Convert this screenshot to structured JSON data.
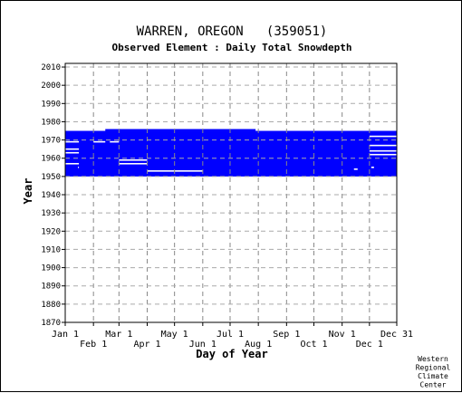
{
  "chart_data": {
    "type": "heatmap",
    "title": "WARREN, OREGON   (359051)",
    "subtitle": "Observed Element : Daily Total Snowdepth",
    "xlabel": "Day of Year",
    "ylabel": "Year",
    "xlim": [
      1,
      365
    ],
    "ylim": [
      1870,
      2012
    ],
    "x_ticks_top_row": [
      {
        "label": "Jan 1",
        "day": 1
      },
      {
        "label": "Mar 1",
        "day": 60
      },
      {
        "label": "May 1",
        "day": 121
      },
      {
        "label": "Jul 1",
        "day": 182
      },
      {
        "label": "Sep 1",
        "day": 244
      },
      {
        "label": "Nov 1",
        "day": 305
      },
      {
        "label": "Dec 31",
        "day": 365
      }
    ],
    "x_ticks_bottom_row": [
      {
        "label": "Feb 1",
        "day": 32
      },
      {
        "label": "Apr 1",
        "day": 91
      },
      {
        "label": "Jun 1",
        "day": 152
      },
      {
        "label": "Aug 1",
        "day": 213
      },
      {
        "label": "Oct 1",
        "day": 274
      },
      {
        "label": "Dec 1",
        "day": 335
      }
    ],
    "y_ticks": [
      2010,
      2000,
      1990,
      1980,
      1970,
      1960,
      1950,
      1940,
      1930,
      1920,
      1910,
      1900,
      1890,
      1880,
      1870
    ],
    "grid": true,
    "data_color": "#0000ff",
    "record_periods": [
      {
        "start_day": 1,
        "end_day": 365,
        "start_year": 1950,
        "end_year": 1975
      },
      {
        "start_day": 45,
        "end_day": 210,
        "start_year": 1975,
        "end_year": 1976
      }
    ],
    "missing_gaps": [
      {
        "start_day": 1,
        "end_day": 16,
        "year": 1969
      },
      {
        "start_day": 1,
        "end_day": 16,
        "year": 1965
      },
      {
        "start_day": 1,
        "end_day": 16,
        "year": 1963
      },
      {
        "start_day": 1,
        "end_day": 16,
        "year": 1957
      },
      {
        "start_day": 32,
        "end_day": 45,
        "year": 1969
      },
      {
        "start_day": 15,
        "end_day": 16,
        "year": 1955
      },
      {
        "start_day": 50,
        "end_day": 60,
        "year": 1969
      },
      {
        "start_day": 60,
        "end_day": 91,
        "year": 1959
      },
      {
        "start_day": 60,
        "end_day": 91,
        "year": 1957
      },
      {
        "start_day": 91,
        "end_day": 152,
        "year": 1953
      },
      {
        "start_day": 335,
        "end_day": 365,
        "year": 1972
      },
      {
        "start_day": 335,
        "end_day": 365,
        "year": 1967
      },
      {
        "start_day": 335,
        "end_day": 365,
        "year": 1964
      },
      {
        "start_day": 335,
        "end_day": 365,
        "year": 1962
      },
      {
        "start_day": 337,
        "end_day": 340,
        "year": 1955
      },
      {
        "start_day": 318,
        "end_day": 322,
        "year": 1954
      },
      {
        "start_day": 216,
        "end_day": 365,
        "year": 1949
      }
    ],
    "credit": [
      "Western",
      "Regional",
      "Climate",
      "Center"
    ]
  }
}
